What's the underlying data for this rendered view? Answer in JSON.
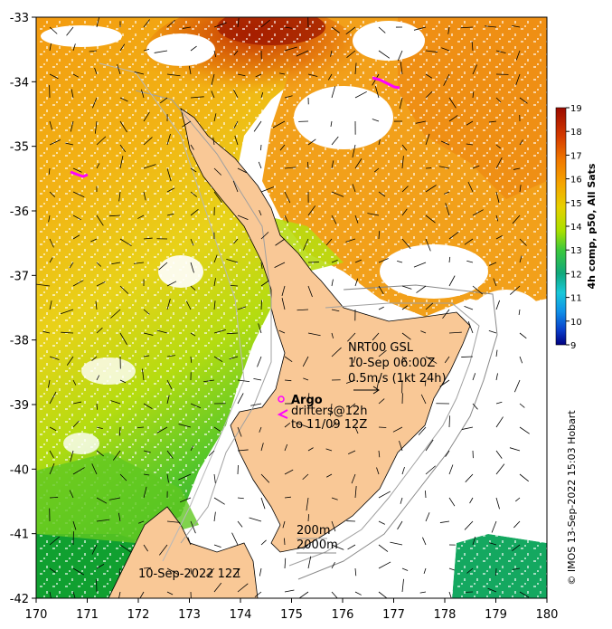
{
  "map": {
    "lon_range": [
      170,
      180
    ],
    "lat_range": [
      -42,
      -33
    ],
    "x_ticks": [
      "170",
      "171",
      "172",
      "173",
      "174",
      "175",
      "176",
      "177",
      "178",
      "179",
      "180"
    ],
    "y_ticks": [
      "-33",
      "-34",
      "-35",
      "-36",
      "-37",
      "-38",
      "-39",
      "-40",
      "-41",
      "-42"
    ],
    "land_color": "#f9c896",
    "colormap": "sst"
  },
  "colorbar": {
    "title": "4h comp, p50, All Sats",
    "ticks": [
      "19",
      "18",
      "17",
      "16",
      "15",
      "14",
      "13",
      "12",
      "11",
      "10",
      "9"
    ],
    "range": [
      9,
      19
    ]
  },
  "annotations": {
    "product": "NRT00 GSL",
    "time": "10-Sep 06:00Z",
    "scale": "0.5m/s (1kt 24h)",
    "argo": "Argo",
    "drifters": "drifters@12h",
    "drifters_to": "to 11/09 12Z",
    "contour_200": "200m",
    "contour_2000": "2000m",
    "date": "10-Sep-2022 12Z",
    "credit": "© IMOS 13-Sep-2022 15:03 Hobart"
  },
  "colors": {
    "argo_marker": "#ff00ff",
    "drifter_marker": "#ff00ff",
    "contour": "#a0a0a0"
  }
}
